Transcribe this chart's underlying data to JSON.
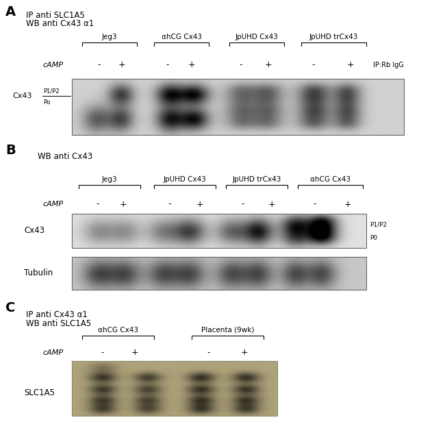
{
  "bg_color": "#ffffff",
  "fig_width": 6.5,
  "fig_height": 6.19,
  "panel_A": {
    "label": "A",
    "title_line1": "IP anti SLC1A5",
    "title_line2": "WB anti Cx43 α1",
    "groups": [
      "Jeg3",
      "αhCG Cx43",
      "JpUHD Cx43",
      "JpUHD trCx43"
    ],
    "right_label": "IP:Rb IgG",
    "left_label": "Cx43",
    "band_label1": "P1/P2",
    "band_label2": "Po"
  },
  "panel_B": {
    "label": "B",
    "title_line1": "WB anti Cx43",
    "groups": [
      "Jeg3",
      "JpUHD Cx43",
      "JpUHD trCx43",
      "αhCG Cx43"
    ],
    "right_label1": "P1/P2",
    "right_label2": "P0",
    "left_label1": "Cx43",
    "left_label2": "Tubulin"
  },
  "panel_C": {
    "label": "C",
    "title_line1": "IP anti Cx43 α1",
    "title_line2": "WB anti SLC1A5",
    "groups": [
      "αhCG Cx43",
      "Placenta (9wk)"
    ],
    "left_label": "SLC1A5"
  }
}
